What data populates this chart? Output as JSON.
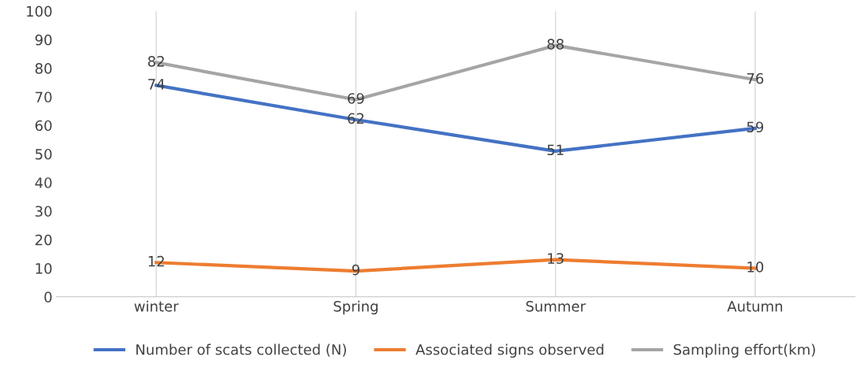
{
  "chart_data": {
    "type": "line",
    "categories": [
      "winter",
      "Spring",
      "Summer",
      "Autumn"
    ],
    "series": [
      {
        "name": "Number of scats collected (N)",
        "color": "#4472c4",
        "values": [
          74,
          62,
          51,
          59
        ]
      },
      {
        "name": "Associated signs observed",
        "color": "#ed7d31",
        "values": [
          12,
          9,
          13,
          10
        ]
      },
      {
        "name": "Sampling effort(km)",
        "color": "#a5a5a5",
        "values": [
          82,
          69,
          88,
          76
        ]
      }
    ],
    "ylim": [
      0,
      100
    ],
    "yticks": [
      0,
      10,
      20,
      30,
      40,
      50,
      60,
      70,
      80,
      90,
      100
    ],
    "grid": "x",
    "legend": "bottom",
    "data_labels": true,
    "marker": "none",
    "line_style": "solid"
  }
}
